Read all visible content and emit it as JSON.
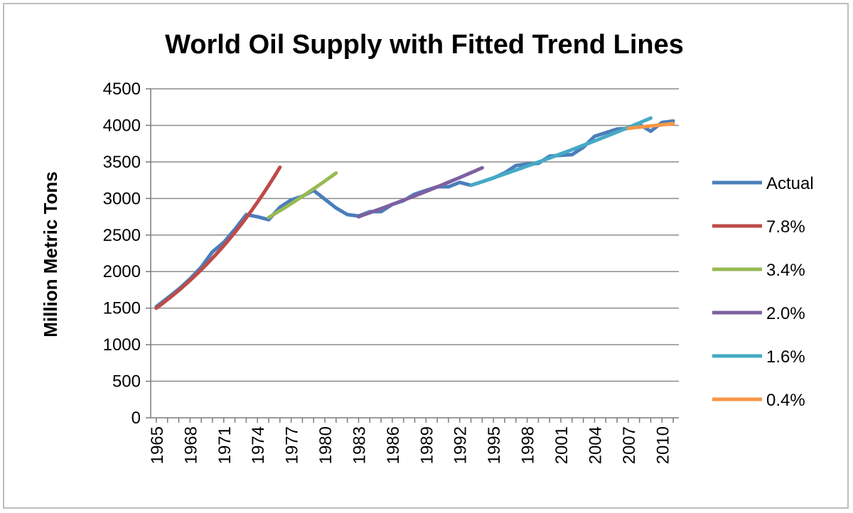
{
  "chart_data": {
    "type": "line",
    "title": "World Oil Supply with Fitted Trend Lines",
    "xlabel": "",
    "ylabel": "Million Metric Tons",
    "xlim": [
      1965,
      2011
    ],
    "ylim": [
      0,
      4500
    ],
    "yticks": [
      0,
      500,
      1000,
      1500,
      2000,
      2500,
      3000,
      3500,
      4000,
      4500
    ],
    "xtick_labels": [
      "1965",
      "1968",
      "1971",
      "1974",
      "1977",
      "1980",
      "1983",
      "1986",
      "1989",
      "1992",
      "1995",
      "1998",
      "2001",
      "2004",
      "2007",
      "2010"
    ],
    "grid": true,
    "legend_position": "right",
    "series": [
      {
        "name": "Actual",
        "color": "#4a7ebb",
        "x": [
          1965,
          1966,
          1967,
          1968,
          1969,
          1970,
          1971,
          1972,
          1973,
          1974,
          1975,
          1976,
          1977,
          1978,
          1979,
          1980,
          1981,
          1982,
          1983,
          1984,
          1985,
          1986,
          1987,
          1988,
          1989,
          1990,
          1991,
          1992,
          1993,
          1994,
          1995,
          1996,
          1997,
          1998,
          1999,
          2000,
          2001,
          2002,
          2003,
          2004,
          2005,
          2006,
          2007,
          2008,
          2009,
          2010,
          2011
        ],
        "y": [
          1520,
          1640,
          1760,
          1900,
          2060,
          2270,
          2400,
          2580,
          2780,
          2750,
          2710,
          2880,
          2980,
          3030,
          3110,
          2990,
          2870,
          2780,
          2760,
          2820,
          2820,
          2920,
          2970,
          3060,
          3110,
          3160,
          3160,
          3220,
          3180,
          3230,
          3280,
          3350,
          3450,
          3470,
          3480,
          3580,
          3590,
          3600,
          3700,
          3850,
          3900,
          3950,
          3960,
          4010,
          3920,
          4040,
          4060
        ]
      },
      {
        "name": "7.8%",
        "color": "#be4b48",
        "x": [
          1965,
          1976
        ],
        "rate": 0.078,
        "start": 1500
      },
      {
        "name": "3.4%",
        "color": "#98b954",
        "x": [
          1975,
          1981
        ],
        "rate": 0.034,
        "start": 2740
      },
      {
        "name": "2.0%",
        "color": "#7d60a0",
        "x": [
          1983,
          1994
        ],
        "rate": 0.02,
        "start": 2750
      },
      {
        "name": "1.6%",
        "color": "#46aac5",
        "x": [
          1993,
          2009
        ],
        "rate": 0.016,
        "start": 3180
      },
      {
        "name": "0.4%",
        "color": "#f79646",
        "x": [
          2007,
          2011
        ],
        "rate": 0.004,
        "start": 3960
      }
    ]
  }
}
